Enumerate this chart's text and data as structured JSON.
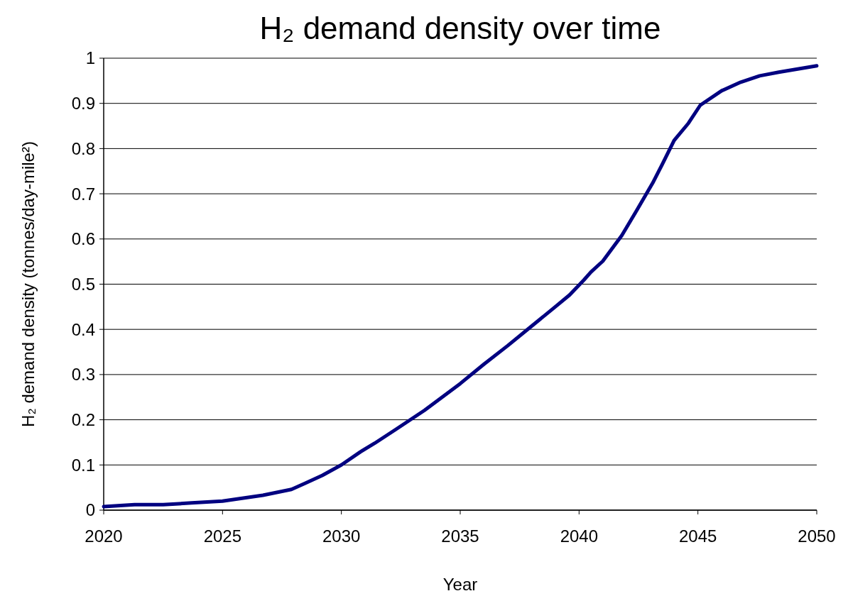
{
  "chart_data": {
    "type": "line",
    "title": "H₂ demand density over time",
    "xlabel": "Year",
    "ylabel": "H₂ demand density (tonnes/day-mile²)",
    "x": [
      2020,
      2021.3,
      2022.5,
      2023.7,
      2025,
      2026.7,
      2027.9,
      2028.5,
      2029.2,
      2030,
      2030.8,
      2031.4,
      2032.3,
      2033.5,
      2035,
      2036,
      2037,
      2038,
      2039,
      2039.6,
      2040.2,
      2040.5,
      2041,
      2041.8,
      2042.4,
      2043.1,
      2043.5,
      2044,
      2044.6,
      2045.1,
      2046,
      2046.8,
      2047.6,
      2048.4,
      2050
    ],
    "series": [
      {
        "color": "#000080",
        "values": [
          0.008,
          0.012,
          0.012,
          0.016,
          0.02,
          0.033,
          0.046,
          0.06,
          0.077,
          0.1,
          0.129,
          0.148,
          0.179,
          0.221,
          0.28,
          0.323,
          0.364,
          0.407,
          0.45,
          0.476,
          0.509,
          0.527,
          0.551,
          0.608,
          0.661,
          0.724,
          0.765,
          0.818,
          0.856,
          0.896,
          0.928,
          0.947,
          0.961,
          0.969,
          0.983
        ]
      }
    ],
    "xlim": [
      2020,
      2050
    ],
    "xticks": [
      2020,
      2025,
      2030,
      2035,
      2040,
      2045,
      2050
    ],
    "ylim": [
      0,
      1
    ],
    "yticks": [
      0,
      0.1,
      0.2,
      0.3,
      0.4,
      0.5,
      0.6,
      0.7,
      0.8,
      0.9,
      1
    ],
    "grid": "y",
    "marker": "none",
    "line_style": "solid"
  }
}
